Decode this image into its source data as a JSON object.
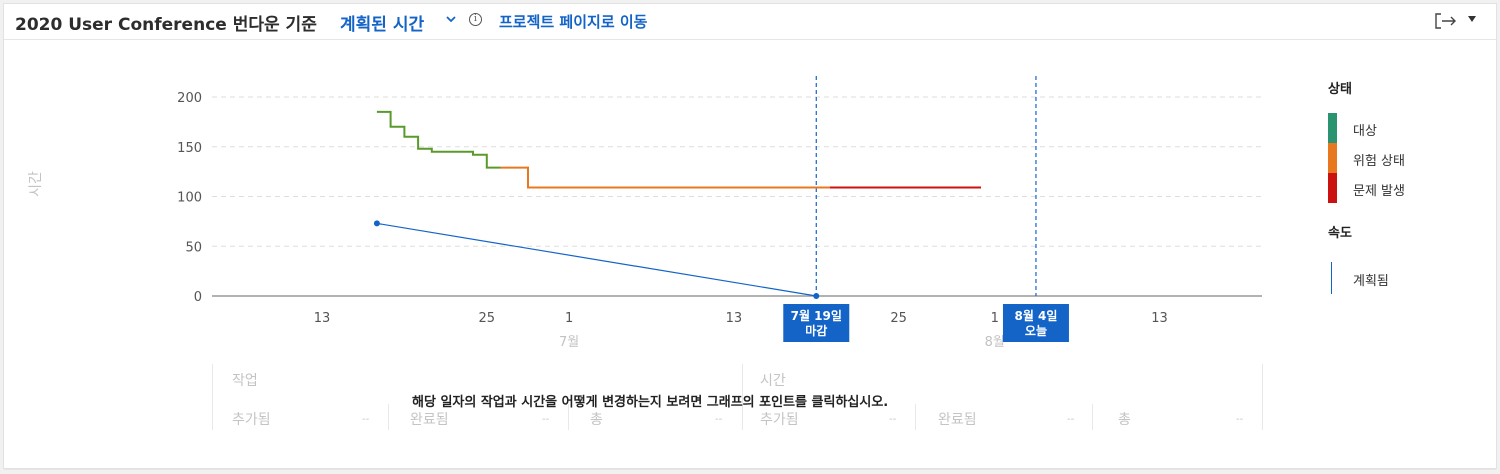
{
  "header": {
    "title": "2020 User Conference 번다운 기준",
    "mode_selector": "계획된 시간",
    "info_icon": "info-icon",
    "project_link": "프로젝트 페이지로 이동",
    "export_icon": "export-icon"
  },
  "chart_data": {
    "type": "line",
    "ylabel": "시간",
    "ylim": [
      0,
      200
    ],
    "yticks": [
      "0",
      "50",
      "100",
      "150",
      "200"
    ],
    "grid": true,
    "x_tick_labels": [
      "13",
      "25",
      "1",
      "13",
      "25",
      "1",
      "13"
    ],
    "x_month_labels": [
      "7월",
      "8월"
    ],
    "series": [
      {
        "name": "",
        "status": "대상",
        "color": "#5a9a2b",
        "shape": "step",
        "points": [
          {
            "x": "6/17",
            "y": 185
          },
          {
            "x": "6/18",
            "y": 185
          },
          {
            "x": "6/18",
            "y": 170
          },
          {
            "x": "6/19",
            "y": 170
          },
          {
            "x": "6/19",
            "y": 160
          },
          {
            "x": "6/20",
            "y": 160
          },
          {
            "x": "6/20",
            "y": 148
          },
          {
            "x": "6/21",
            "y": 148
          },
          {
            "x": "6/21",
            "y": 145
          },
          {
            "x": "6/24",
            "y": 145
          },
          {
            "x": "6/24",
            "y": 142
          },
          {
            "x": "6/25",
            "y": 142
          },
          {
            "x": "6/25",
            "y": 129
          },
          {
            "x": "6/26",
            "y": 129
          }
        ]
      },
      {
        "name": "",
        "status": "위험 상태",
        "color": "#e8781f",
        "shape": "step",
        "points": [
          {
            "x": "6/26",
            "y": 129
          },
          {
            "x": "6/28",
            "y": 129
          },
          {
            "x": "6/28",
            "y": 109
          },
          {
            "x": "7/20",
            "y": 109
          }
        ]
      },
      {
        "name": "",
        "status": "문제 발생",
        "color": "#cc1111",
        "shape": "step",
        "points": [
          {
            "x": "7/20",
            "y": 109
          },
          {
            "x": "7/31",
            "y": 109
          }
        ]
      },
      {
        "name": "계획됨",
        "color": "#1464c8",
        "shape": "linear",
        "points": [
          {
            "x": "6/17",
            "y": 73
          },
          {
            "x": "7/19",
            "y": 0
          }
        ]
      }
    ],
    "markers": [
      {
        "label_line1": "7월 19일",
        "label_line2": "마감",
        "x": "7/19",
        "color": "#1464c8"
      },
      {
        "label_line1": "8월 4일",
        "label_line2": "오늘",
        "x": "8/4",
        "color": "#1464c8"
      }
    ]
  },
  "legend": {
    "status_title": "상태",
    "status_items": [
      {
        "label": "대상",
        "color": "#2a9471"
      },
      {
        "label": "위험 상태",
        "color": "#e8781f"
      },
      {
        "label": "문제 발생",
        "color": "#cc1111"
      }
    ],
    "velocity_title": "속도",
    "velocity_item": "계획됨"
  },
  "stats": {
    "tasks_group": "작업",
    "hours_group": "시간",
    "tasks": [
      {
        "label": "추가됨",
        "value": "--"
      },
      {
        "label": "완료됨",
        "value": "--"
      },
      {
        "label": "총",
        "value": "--"
      }
    ],
    "hours": [
      {
        "label": "추가됨",
        "value": "--"
      },
      {
        "label": "완료됨",
        "value": "--"
      },
      {
        "label": "총",
        "value": "--"
      }
    ]
  },
  "hint": "해당 일자의 작업과 시간을 어떻게 변경하는지 보려면 그래프의 포인트를 클릭하십시오."
}
